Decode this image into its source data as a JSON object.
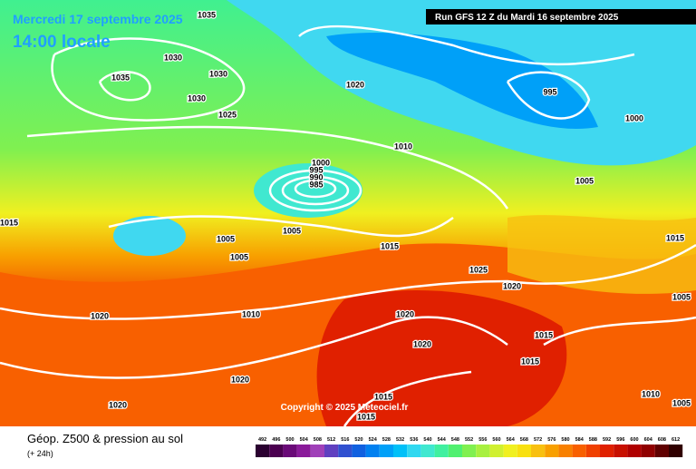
{
  "header": {
    "date": "Mercredi 17 septembre 2025",
    "time": "14:00 locale",
    "run": "Run GFS 12 Z du Mardi 16 septembre 2025"
  },
  "copyright": "Copyright © 2025 Meteociel.fr",
  "isobar_labels": [
    "1035",
    "1030",
    "1035",
    "1030",
    "1030",
    "1025",
    "1020",
    "995",
    "1000",
    "1010",
    "1000",
    "995",
    "990",
    "985",
    "1005",
    "1015",
    "1005",
    "1005",
    "1005",
    "1015",
    "1015",
    "1025",
    "1020",
    "1020",
    "1010",
    "1020",
    "1020",
    "1015",
    "1015",
    "1005",
    "1020",
    "1020",
    "1010",
    "1005",
    "1015",
    "1015"
  ],
  "footer": {
    "title": "Géop. Z500 & pression au sol",
    "subtitle": "(+ 24h)"
  },
  "scale": {
    "labels": [
      492,
      496,
      500,
      504,
      508,
      512,
      516,
      520,
      524,
      528,
      532,
      536,
      540,
      544,
      548,
      552,
      556,
      560,
      564,
      568,
      572,
      576,
      580,
      584,
      588,
      592,
      596,
      600,
      604,
      608,
      612
    ],
    "colors": [
      "#2a0030",
      "#4b0050",
      "#6a0a78",
      "#8a1a9a",
      "#a040b8",
      "#6040c0",
      "#3050d0",
      "#1060e0",
      "#0080f0",
      "#00a0f8",
      "#00c0f8",
      "#30d8f0",
      "#40e8d0",
      "#40f0a0",
      "#50f070",
      "#80f050",
      "#a8f040",
      "#d0f030",
      "#f0f020",
      "#f8e010",
      "#f8c010",
      "#f8a000",
      "#f88000",
      "#f86000",
      "#f04000",
      "#e02000",
      "#c81000",
      "#b00000",
      "#900000",
      "#600000",
      "#300000"
    ]
  }
}
